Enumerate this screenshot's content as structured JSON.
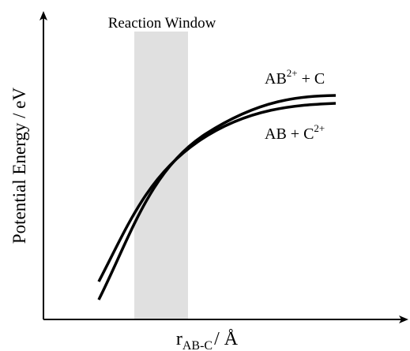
{
  "title": "Reaction Window",
  "y_axis_label": "Potential Energy / eV",
  "x_axis_label": {
    "main": "r",
    "sub": "AB-C",
    "rest": "/ Å"
  },
  "curves": [
    {
      "base": "AB",
      "sup": "2+",
      "rest": " + C"
    },
    {
      "base": "AB + C",
      "sup": "2+"
    }
  ]
}
